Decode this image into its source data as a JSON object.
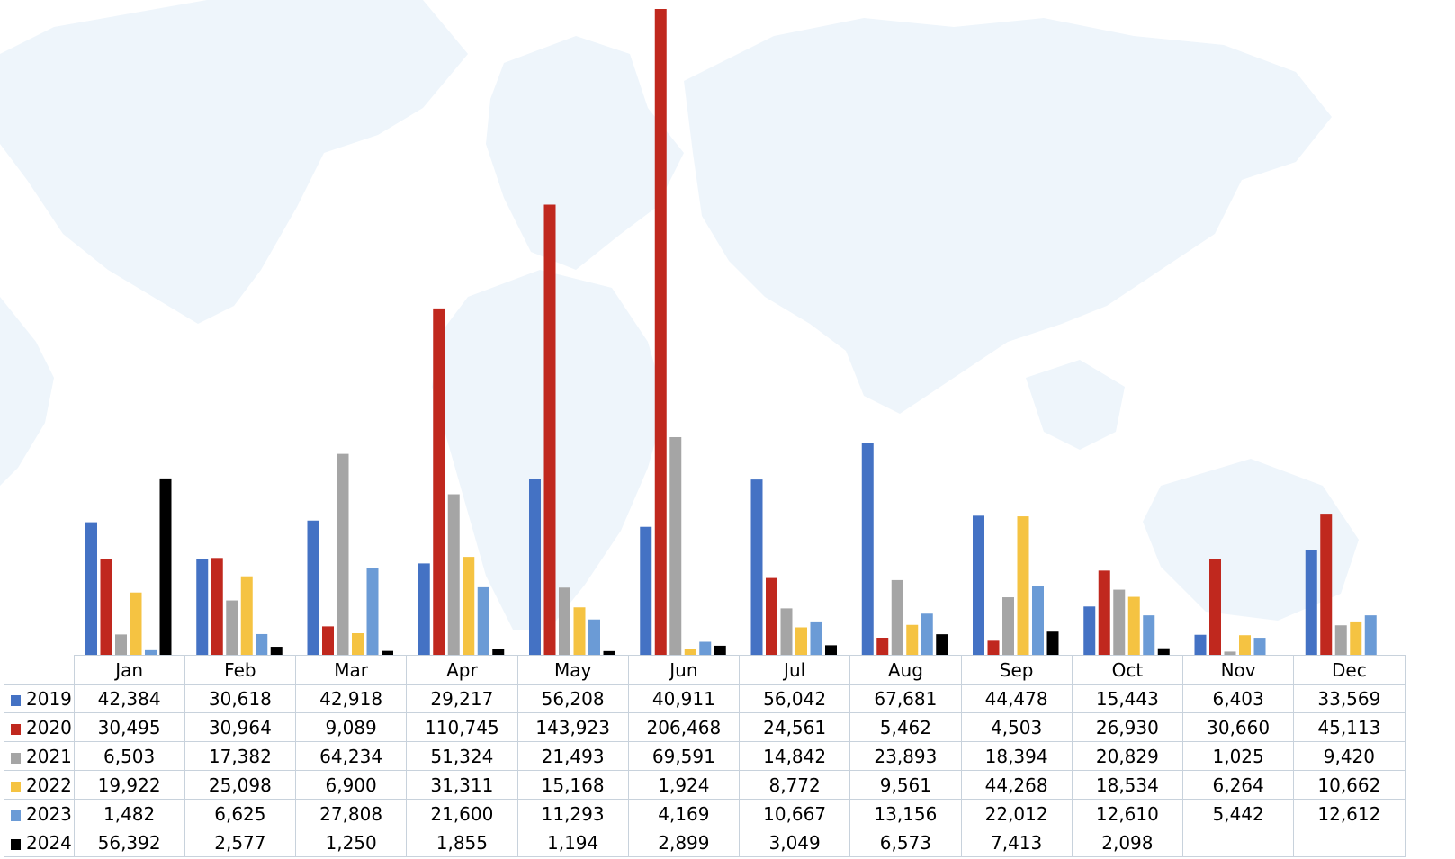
{
  "chart_data": {
    "type": "bar",
    "categories": [
      "Jan",
      "Feb",
      "Mar",
      "Apr",
      "May",
      "Jun",
      "Jul",
      "Aug",
      "Sep",
      "Oct",
      "Nov",
      "Dec"
    ],
    "series": [
      {
        "name": "2019",
        "color": "#4472c4",
        "values": [
          42384,
          30618,
          42918,
          29217,
          56208,
          40911,
          56042,
          67681,
          44478,
          15443,
          6403,
          33569
        ],
        "labels": [
          "42,384",
          "30,618",
          "42,918",
          "29,217",
          "56,208",
          "40,911",
          "56,042",
          "67,681",
          "44,478",
          "15,443",
          "6,403",
          "33,569"
        ]
      },
      {
        "name": "2020",
        "color": "#c0281e",
        "values": [
          30495,
          30964,
          9089,
          110745,
          143923,
          206468,
          24561,
          5462,
          4503,
          26930,
          30660,
          45113
        ],
        "labels": [
          "30,495",
          "30,964",
          "9,089",
          "110,745",
          "143,923",
          "206,468",
          "24,561",
          "5,462",
          "4,503",
          "26,930",
          "30,660",
          "45,113"
        ]
      },
      {
        "name": "2021",
        "color": "#a5a5a5",
        "values": [
          6503,
          17382,
          64234,
          51324,
          21493,
          69591,
          14842,
          23893,
          18394,
          20829,
          1025,
          9420
        ],
        "labels": [
          "6,503",
          "17,382",
          "64,234",
          "51,324",
          "21,493",
          "69,591",
          "14,842",
          "23,893",
          "18,394",
          "20,829",
          "1,025",
          "9,420"
        ]
      },
      {
        "name": "2022",
        "color": "#f5c342",
        "values": [
          19922,
          25098,
          6900,
          31311,
          15168,
          1924,
          8772,
          9561,
          44268,
          18534,
          6264,
          10662
        ],
        "labels": [
          "19,922",
          "25,098",
          "6,900",
          "31,311",
          "15,168",
          "1,924",
          "8,772",
          "9,561",
          "44,268",
          "18,534",
          "6,264",
          "10,662"
        ]
      },
      {
        "name": "2023",
        "color": "#6b9bd6",
        "values": [
          1482,
          6625,
          27808,
          21600,
          11293,
          4169,
          10667,
          13156,
          22012,
          12610,
          5442,
          12612
        ],
        "labels": [
          "1,482",
          "6,625",
          "27,808",
          "21,600",
          "11,293",
          "4,169",
          "10,667",
          "13,156",
          "22,012",
          "12,610",
          "5,442",
          "12,612"
        ]
      },
      {
        "name": "2024",
        "color": "#000000",
        "values": [
          56392,
          2577,
          1250,
          1855,
          1194,
          2899,
          3049,
          6573,
          7413,
          2098,
          null,
          null
        ],
        "labels": [
          "56,392",
          "2,577",
          "1,250",
          "1,855",
          "1,194",
          "2,899",
          "3,049",
          "6,573",
          "7,413",
          "2,098",
          "",
          ""
        ]
      }
    ],
    "ylim": [
      0,
      206468
    ],
    "grid": false,
    "legend": "data-table"
  }
}
